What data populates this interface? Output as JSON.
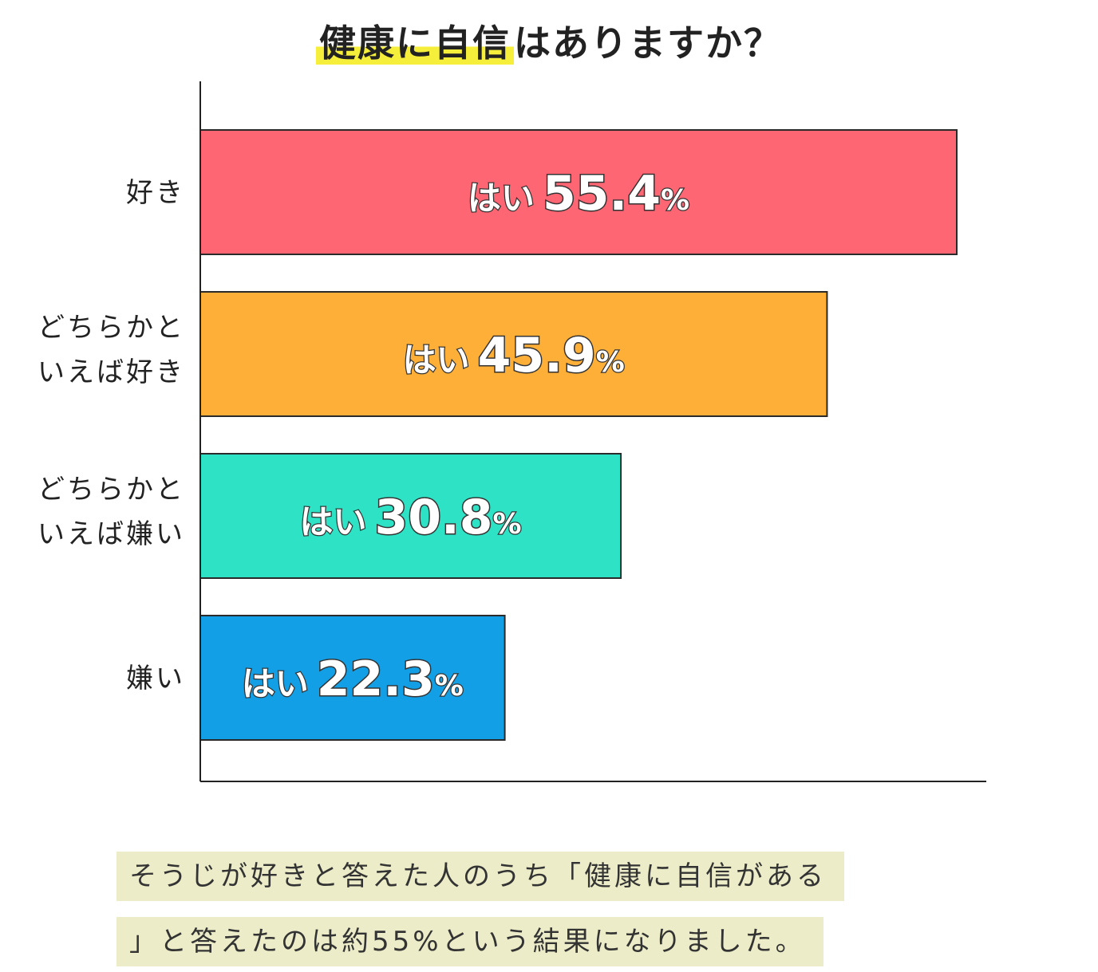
{
  "title": {
    "highlight": "健康に自信",
    "rest": "はありますか？"
  },
  "chart_data": {
    "type": "bar",
    "orientation": "horizontal",
    "categories": [
      [
        "好き"
      ],
      [
        "どちらかと",
        "いえば好き"
      ],
      [
        "どちらかと",
        "いえば嫌い"
      ],
      [
        "嫌い"
      ]
    ],
    "bar_label_prefix": "はい",
    "unit": "%",
    "values": [
      55.4,
      45.9,
      30.8,
      22.3
    ],
    "colors": [
      "#fe6673",
      "#fdaf38",
      "#2ee3c5",
      "#129fe5"
    ],
    "xlim": [
      0,
      60
    ],
    "grid": false
  },
  "caption": {
    "line1": "そうじが好きと答えた人のうち「健康に自信がある",
    "line2": "」と答えたのは約55%という結果になりました。"
  }
}
